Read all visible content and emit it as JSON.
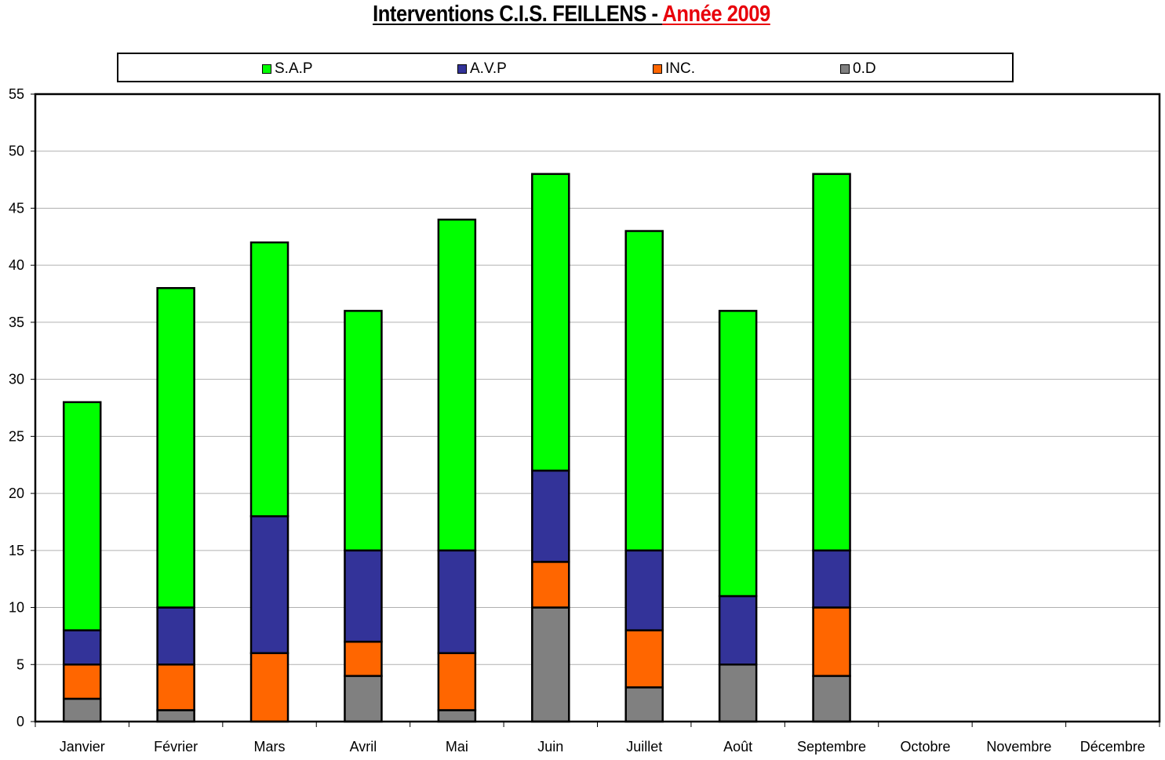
{
  "title": {
    "main": "Interventions C.I.S. FEILLENS - ",
    "year": "Année 2009"
  },
  "colors": {
    "S.A.P": "#00ff00",
    "A.V.P": "#333399",
    "INC.": "#ff6600",
    "0.D": "#808080",
    "title_year": "#e8000b",
    "grid": "#b0b0b0"
  },
  "legend": {
    "position": "top",
    "items": [
      "S.A.P",
      "A.V.P",
      "INC.",
      "0.D"
    ]
  },
  "chart_data": {
    "type": "bar",
    "stacked": true,
    "title": "Interventions C.I.S. FEILLENS - Année 2009",
    "categories": [
      "Janvier",
      "Février",
      "Mars",
      "Avril",
      "Mai",
      "Juin",
      "Juillet",
      "Août",
      "Septembre",
      "Octobre",
      "Novembre",
      "Décembre"
    ],
    "series": [
      {
        "name": "0.D",
        "values": [
          2,
          1,
          0,
          4,
          1,
          10,
          3,
          5,
          4,
          null,
          null,
          null
        ]
      },
      {
        "name": "INC.",
        "values": [
          3,
          4,
          6,
          3,
          5,
          4,
          5,
          0,
          6,
          null,
          null,
          null
        ]
      },
      {
        "name": "A.V.P",
        "values": [
          3,
          5,
          12,
          8,
          9,
          8,
          7,
          6,
          5,
          null,
          null,
          null
        ]
      },
      {
        "name": "S.A.P",
        "values": [
          20,
          28,
          24,
          21,
          29,
          26,
          28,
          25,
          33,
          null,
          null,
          null
        ]
      }
    ],
    "ylim": [
      0,
      55
    ],
    "yticks": [
      0,
      5,
      10,
      15,
      20,
      25,
      30,
      35,
      40,
      45,
      50,
      55
    ],
    "grid": true
  }
}
